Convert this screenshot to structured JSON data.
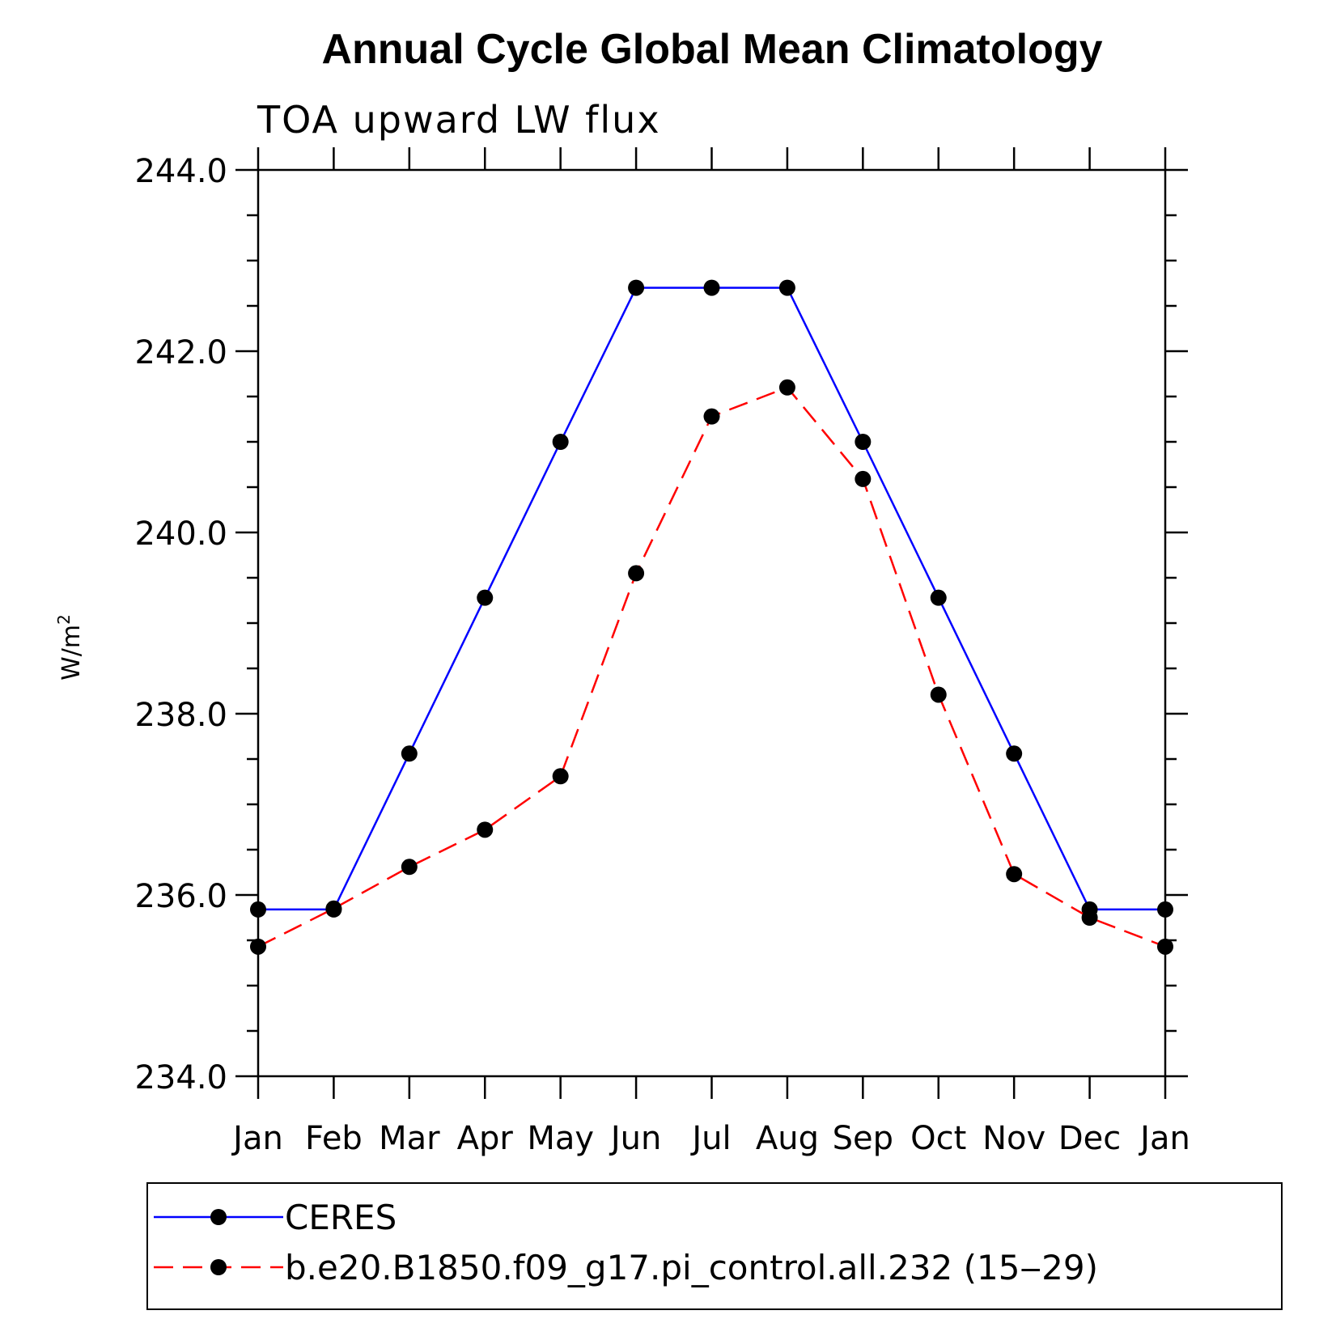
{
  "chart_data": {
    "type": "line",
    "title": "Annual Cycle Global Mean Climatology",
    "subtitle": "TOA upward LW flux",
    "ylabel": "W/m",
    "ylabel_superscript": "2",
    "xlabel": "",
    "categories": [
      "Jan",
      "Feb",
      "Mar",
      "Apr",
      "May",
      "Jun",
      "Jul",
      "Aug",
      "Sep",
      "Oct",
      "Nov",
      "Dec",
      "Jan"
    ],
    "ylim": [
      234.0,
      244.0
    ],
    "yticks": [
      "234.0",
      "236.0",
      "238.0",
      "240.0",
      "242.0",
      "244.0"
    ],
    "grid": false,
    "legend_position": "bottom",
    "series": [
      {
        "name": "CERES",
        "color": "#0000ff",
        "line_style": "solid",
        "marker": "filled-circle",
        "values": [
          235.84,
          235.84,
          237.56,
          239.28,
          241.0,
          242.7,
          242.7,
          242.7,
          241.0,
          239.28,
          237.56,
          235.84,
          235.84
        ]
      },
      {
        "name": "b.e20.B1850.f09_g17.pi_control.all.232 (15‒29)",
        "color": "#ff0000",
        "line_style": "dashed",
        "marker": "filled-circle",
        "values": [
          235.43,
          235.85,
          236.31,
          236.72,
          237.31,
          239.55,
          241.28,
          241.6,
          240.59,
          238.21,
          236.23,
          235.75,
          235.43
        ]
      }
    ]
  }
}
